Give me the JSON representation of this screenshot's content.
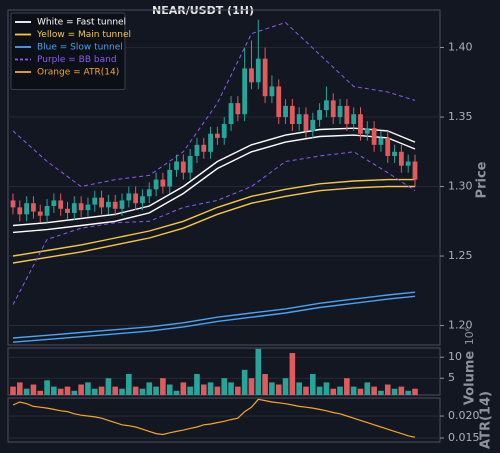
{
  "chart_data": [
    {
      "type": "candlestick",
      "title": "NEAR/USDT (1H)",
      "ylabel": "Price",
      "ylim": [
        1.186,
        1.427
      ],
      "yticks": [
        {
          "value": 1.2,
          "label": "1.20"
        },
        {
          "value": 1.25,
          "label": "1.25"
        },
        {
          "value": 1.3,
          "label": "1.30"
        },
        {
          "value": 1.35,
          "label": "1.35"
        },
        {
          "value": 1.4,
          "label": "1.40"
        }
      ],
      "grid": true,
      "up_color": "#26a69a",
      "down_color": "#e05a5e",
      "open": [
        1.29,
        1.285,
        1.28,
        1.288,
        1.282,
        1.279,
        1.286,
        1.29,
        1.284,
        1.281,
        1.288,
        1.283,
        1.287,
        1.292,
        1.285,
        1.289,
        1.284,
        1.29,
        1.295,
        1.288,
        1.293,
        1.298,
        1.305,
        1.3,
        1.312,
        1.318,
        1.31,
        1.322,
        1.33,
        1.325,
        1.338,
        1.335,
        1.345,
        1.36,
        1.352,
        1.385,
        1.375,
        1.392,
        1.365,
        1.372,
        1.35,
        1.358,
        1.345,
        1.352,
        1.34,
        1.348,
        1.355,
        1.362,
        1.35,
        1.358,
        1.345,
        1.352,
        1.338,
        1.342,
        1.33,
        1.335,
        1.322,
        1.325,
        1.315,
        1.318
      ],
      "high": [
        1.295,
        1.29,
        1.293,
        1.293,
        1.287,
        1.291,
        1.295,
        1.295,
        1.289,
        1.293,
        1.293,
        1.292,
        1.297,
        1.297,
        1.294,
        1.294,
        1.295,
        1.3,
        1.3,
        1.298,
        1.303,
        1.31,
        1.31,
        1.317,
        1.323,
        1.323,
        1.327,
        1.335,
        1.335,
        1.343,
        1.343,
        1.35,
        1.365,
        1.365,
        1.4,
        1.405,
        1.42,
        1.4,
        1.38,
        1.377,
        1.363,
        1.363,
        1.357,
        1.357,
        1.353,
        1.36,
        1.372,
        1.367,
        1.363,
        1.363,
        1.357,
        1.357,
        1.347,
        1.347,
        1.34,
        1.34,
        1.33,
        1.33,
        1.323,
        1.323
      ],
      "low": [
        1.28,
        1.275,
        1.275,
        1.277,
        1.274,
        1.274,
        1.281,
        1.279,
        1.276,
        1.276,
        1.278,
        1.278,
        1.282,
        1.28,
        1.28,
        1.279,
        1.279,
        1.285,
        1.283,
        1.283,
        1.288,
        1.293,
        1.295,
        1.295,
        1.307,
        1.305,
        1.305,
        1.317,
        1.32,
        1.32,
        1.33,
        1.33,
        1.34,
        1.347,
        1.347,
        1.37,
        1.37,
        1.36,
        1.36,
        1.345,
        1.345,
        1.34,
        1.34,
        1.335,
        1.335,
        1.343,
        1.35,
        1.345,
        1.345,
        1.34,
        1.34,
        1.333,
        1.333,
        1.325,
        1.325,
        1.317,
        1.317,
        1.31,
        1.31,
        1.3
      ],
      "close": [
        1.285,
        1.28,
        1.288,
        1.282,
        1.279,
        1.286,
        1.29,
        1.284,
        1.281,
        1.288,
        1.283,
        1.287,
        1.292,
        1.285,
        1.289,
        1.284,
        1.29,
        1.295,
        1.288,
        1.293,
        1.298,
        1.305,
        1.3,
        1.312,
        1.318,
        1.31,
        1.322,
        1.33,
        1.325,
        1.338,
        1.335,
        1.345,
        1.36,
        1.352,
        1.385,
        1.375,
        1.392,
        1.365,
        1.372,
        1.35,
        1.358,
        1.345,
        1.352,
        1.34,
        1.348,
        1.355,
        1.362,
        1.35,
        1.358,
        1.345,
        1.352,
        1.338,
        1.342,
        1.33,
        1.335,
        1.322,
        1.325,
        1.315,
        1.318,
        1.305
      ],
      "series": [
        {
          "name": "White = Fast tunnel",
          "color": "#ffffff",
          "x": [
            0,
            5,
            10,
            15,
            20,
            25,
            30,
            35,
            40,
            45,
            50,
            55,
            59
          ],
          "values": [
            1.272,
            1.274,
            1.277,
            1.28,
            1.286,
            1.3,
            1.318,
            1.33,
            1.337,
            1.341,
            1.342,
            1.34,
            1.332
          ]
        },
        {
          "color": "#ffffff",
          "x": [
            0,
            5,
            10,
            15,
            20,
            25,
            30,
            35,
            40,
            45,
            50,
            55,
            59
          ],
          "values": [
            1.267,
            1.269,
            1.272,
            1.275,
            1.281,
            1.295,
            1.313,
            1.325,
            1.332,
            1.336,
            1.337,
            1.335,
            1.327
          ]
        },
        {
          "name": "Yellow = Main tunnel",
          "color": "#f5c842",
          "x": [
            0,
            5,
            10,
            15,
            20,
            25,
            30,
            35,
            40,
            45,
            50,
            55,
            59
          ],
          "values": [
            1.25,
            1.254,
            1.258,
            1.263,
            1.268,
            1.275,
            1.285,
            1.293,
            1.298,
            1.302,
            1.304,
            1.305,
            1.305
          ]
        },
        {
          "color": "#f5c842",
          "x": [
            0,
            5,
            10,
            15,
            20,
            25,
            30,
            35,
            40,
            45,
            50,
            55,
            59
          ],
          "values": [
            1.245,
            1.249,
            1.253,
            1.258,
            1.263,
            1.27,
            1.28,
            1.288,
            1.293,
            1.297,
            1.299,
            1.3,
            1.3
          ]
        },
        {
          "name": "Blue = Slow tunnel",
          "color": "#4aa3f0",
          "x": [
            0,
            5,
            10,
            15,
            20,
            25,
            30,
            35,
            40,
            45,
            50,
            55,
            59
          ],
          "values": [
            1.191,
            1.193,
            1.195,
            1.197,
            1.199,
            1.202,
            1.206,
            1.209,
            1.212,
            1.216,
            1.219,
            1.222,
            1.224
          ]
        },
        {
          "color": "#4aa3f0",
          "x": [
            0,
            5,
            10,
            15,
            20,
            25,
            30,
            35,
            40,
            45,
            50,
            55,
            59
          ],
          "values": [
            1.188,
            1.19,
            1.192,
            1.194,
            1.196,
            1.199,
            1.203,
            1.206,
            1.209,
            1.213,
            1.216,
            1.219,
            1.221
          ]
        },
        {
          "name": "Purple = BB band",
          "color": "#8a5cf5",
          "dashed": true,
          "x": [
            0,
            5,
            10,
            15,
            20,
            25,
            30,
            35,
            40,
            45,
            50,
            55,
            59
          ],
          "values": [
            1.34,
            1.318,
            1.3,
            1.305,
            1.308,
            1.325,
            1.36,
            1.41,
            1.418,
            1.395,
            1.372,
            1.368,
            1.362
          ]
        },
        {
          "color": "#8a5cf5",
          "dashed": true,
          "x": [
            0,
            5,
            10,
            15,
            20,
            25,
            30,
            35,
            40,
            45,
            50,
            55,
            59
          ],
          "values": [
            1.215,
            1.262,
            1.27,
            1.274,
            1.275,
            1.285,
            1.29,
            1.3,
            1.318,
            1.322,
            1.325,
            1.31,
            1.297
          ]
        }
      ]
    },
    {
      "type": "volume",
      "ylabel": "Volume",
      "offset_label": "10⁶",
      "ylim": [
        1,
        12.2
      ],
      "yticks": [
        5,
        10
      ],
      "values": [
        3,
        4,
        2.5,
        3.5,
        2,
        4.5,
        3,
        2.5,
        3,
        2,
        3.5,
        4,
        2.5,
        3,
        5,
        3,
        2.5,
        6,
        3,
        2.5,
        4,
        3,
        5,
        3.5,
        2,
        4,
        3,
        6,
        3.5,
        4,
        3,
        5,
        4,
        3,
        7,
        5,
        12,
        6,
        4,
        3.5,
        5,
        11,
        4,
        3,
        6,
        3,
        4,
        2.5,
        3,
        5,
        3,
        2.5,
        4,
        3,
        2,
        3.5,
        2.5,
        3,
        2,
        2.5
      ]
    },
    {
      "type": "line",
      "ylabel": "ATR(14)",
      "name": "Orange = ATR(14)",
      "color": "#f5a623",
      "ylim": [
        0.0141,
        0.0241
      ],
      "yticks": [
        {
          "value": 0.015,
          "label": "0.015"
        },
        {
          "value": 0.02,
          "label": "0.020"
        }
      ],
      "values": [
        0.0225,
        0.0232,
        0.0228,
        0.0222,
        0.022,
        0.0218,
        0.0215,
        0.0212,
        0.021,
        0.0205,
        0.0202,
        0.02,
        0.0198,
        0.0195,
        0.019,
        0.0185,
        0.018,
        0.0178,
        0.0175,
        0.017,
        0.0165,
        0.016,
        0.0158,
        0.0162,
        0.0165,
        0.0168,
        0.0172,
        0.0175,
        0.018,
        0.0182,
        0.0185,
        0.0188,
        0.0192,
        0.0195,
        0.021,
        0.022,
        0.0238,
        0.0235,
        0.0232,
        0.023,
        0.0228,
        0.0225,
        0.0222,
        0.022,
        0.0218,
        0.0215,
        0.0212,
        0.0208,
        0.0205,
        0.02,
        0.0195,
        0.019,
        0.0185,
        0.018,
        0.0175,
        0.017,
        0.0165,
        0.016,
        0.0155,
        0.0152
      ]
    }
  ]
}
